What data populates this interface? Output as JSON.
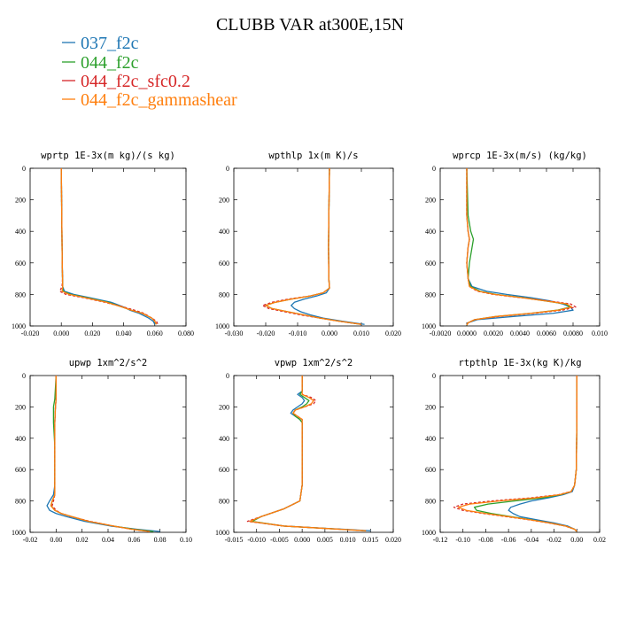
{
  "title": "CLUBB VAR at300E,15N",
  "legend": [
    {
      "label": "037_f2c",
      "color": "#1f77b4"
    },
    {
      "label": "044_f2c",
      "color": "#2ca02c"
    },
    {
      "label": "044_f2c_sfc0.2",
      "color": "#d62728"
    },
    {
      "label": "044_f2c_gammashear",
      "color": "#ff7f0e"
    }
  ],
  "chart_data": [
    {
      "type": "line",
      "title": "wprtp  1E-3x(m kg)/(s kg)",
      "xlim": [
        -0.02,
        0.08
      ],
      "ylim": [
        1000,
        0
      ],
      "xticks": [
        -0.02,
        0.0,
        0.02,
        0.04,
        0.06,
        0.08
      ],
      "xtick_labels": [
        "-0.020",
        "0.000",
        "0.020",
        "0.040",
        "0.060",
        "0.080"
      ],
      "yticks": [
        0,
        200,
        400,
        600,
        800,
        1000
      ],
      "ytick_labels": [
        "0",
        "200",
        "400",
        "600",
        "800",
        "1000"
      ],
      "y": [
        0,
        300,
        600,
        700,
        750,
        780,
        800,
        820,
        850,
        880,
        900,
        920,
        950,
        970,
        990
      ],
      "series": [
        {
          "name": "037_f2c",
          "values": [
            0.0,
            0.0003,
            0.0006,
            0.0008,
            0.0009,
            0.002,
            0.008,
            0.018,
            0.032,
            0.04,
            0.044,
            0.05,
            0.056,
            0.059,
            0.06
          ]
        },
        {
          "name": "044_f2c",
          "values": [
            0.0,
            0.0003,
            0.0006,
            0.0008,
            0.0009,
            0.001,
            0.006,
            0.016,
            0.03,
            0.039,
            0.045,
            0.052,
            0.058,
            0.06,
            0.061
          ]
        },
        {
          "name": "044_f2c_sfc0.2",
          "values": [
            0.0,
            0.0003,
            0.0006,
            0.0008,
            0.0005,
            -0.001,
            0.003,
            0.014,
            0.028,
            0.04,
            0.047,
            0.053,
            0.058,
            0.061,
            0.062
          ]
        },
        {
          "name": "044_f2c_gammashear",
          "values": [
            0.0,
            0.0003,
            0.0006,
            0.0008,
            0.0009,
            0.0005,
            0.005,
            0.015,
            0.029,
            0.039,
            0.045,
            0.052,
            0.058,
            0.06,
            0.061
          ]
        }
      ]
    },
    {
      "type": "line",
      "title": "wpthlp  1x(m K)/s",
      "xlim": [
        -0.03,
        0.02
      ],
      "ylim": [
        1000,
        0
      ],
      "xticks": [
        -0.03,
        -0.02,
        -0.01,
        0.0,
        0.01,
        0.02
      ],
      "xtick_labels": [
        "-0.030",
        "-0.020",
        "-0.010",
        "0.000",
        "0.010",
        "0.020"
      ],
      "yticks": [
        0,
        200,
        400,
        600,
        800,
        1000
      ],
      "ytick_labels": [
        "0",
        "200",
        "400",
        "600",
        "800",
        "1000"
      ],
      "y": [
        0,
        300,
        500,
        700,
        760,
        790,
        810,
        830,
        850,
        870,
        890,
        910,
        930,
        950,
        970,
        990
      ],
      "series": [
        {
          "name": "037_f2c",
          "values": [
            0.0,
            -0.0002,
            -0.0003,
            -0.0002,
            0.0,
            -0.001,
            -0.004,
            -0.008,
            -0.011,
            -0.012,
            -0.011,
            -0.009,
            -0.006,
            -0.002,
            0.004,
            0.011
          ]
        },
        {
          "name": "044_f2c",
          "values": [
            0.0,
            -0.0002,
            -0.0003,
            -0.0002,
            0.0,
            -0.002,
            -0.006,
            -0.012,
            -0.017,
            -0.02,
            -0.018,
            -0.013,
            -0.008,
            -0.003,
            0.003,
            0.01
          ]
        },
        {
          "name": "044_f2c_sfc0.2",
          "values": [
            0.0,
            -0.0002,
            -0.0003,
            -0.0002,
            0.0,
            -0.002,
            -0.006,
            -0.013,
            -0.018,
            -0.021,
            -0.019,
            -0.014,
            -0.009,
            -0.003,
            0.003,
            0.01
          ]
        },
        {
          "name": "044_f2c_gammashear",
          "values": [
            0.0,
            -0.0002,
            -0.0003,
            -0.0002,
            0.0,
            -0.002,
            -0.006,
            -0.012,
            -0.017,
            -0.02,
            -0.018,
            -0.013,
            -0.008,
            -0.003,
            0.003,
            0.01
          ]
        }
      ]
    },
    {
      "type": "line",
      "title": "wprcp  1E-3x(m/s) (kg/kg)",
      "xlim": [
        -0.002,
        0.01
      ],
      "ylim": [
        1000,
        0
      ],
      "xticks": [
        -0.002,
        0.0,
        0.002,
        0.004,
        0.006,
        0.008,
        0.01
      ],
      "xtick_labels": [
        "-0.0020",
        "0.0000",
        "0.0020",
        "0.0040",
        "0.0060",
        "0.0080",
        "0.010"
      ],
      "yticks": [
        0,
        200,
        400,
        600,
        800,
        1000
      ],
      "ytick_labels": [
        "0",
        "200",
        "400",
        "600",
        "800",
        "1000"
      ],
      "y": [
        0,
        300,
        400,
        450,
        500,
        600,
        700,
        750,
        780,
        800,
        820,
        840,
        860,
        880,
        900,
        920,
        940,
        960,
        980,
        995
      ],
      "series": [
        {
          "name": "037_f2c",
          "values": [
            0.0,
            0.0,
            0.0001,
            0.0002,
            0.0001,
            0.0,
            0.0001,
            0.0004,
            0.0015,
            0.003,
            0.0048,
            0.0062,
            0.0072,
            0.0078,
            0.008,
            0.0065,
            0.0035,
            0.0008,
            0.0001,
            0.0
          ]
        },
        {
          "name": "044_f2c",
          "values": [
            0.0,
            0.0001,
            0.0003,
            0.0005,
            0.0004,
            0.0002,
            0.0001,
            0.0003,
            0.001,
            0.0022,
            0.0042,
            0.0058,
            0.0074,
            0.0078,
            0.0068,
            0.0048,
            0.0022,
            0.0006,
            0.0001,
            0.0
          ]
        },
        {
          "name": "044_f2c_sfc0.2",
          "values": [
            0.0,
            0.0,
            0.0001,
            0.0002,
            0.0001,
            0.0,
            0.0001,
            0.0002,
            0.0008,
            0.002,
            0.004,
            0.006,
            0.0078,
            0.0082,
            0.0072,
            0.005,
            0.0024,
            0.0006,
            0.0001,
            0.0
          ]
        },
        {
          "name": "044_f2c_gammashear",
          "values": [
            0.0,
            0.0,
            0.0001,
            0.0002,
            0.0001,
            0.0,
            0.0001,
            0.0002,
            0.0009,
            0.0021,
            0.0041,
            0.0058,
            0.0075,
            0.0079,
            0.0069,
            0.0048,
            0.0022,
            0.0006,
            0.0001,
            0.0
          ]
        }
      ]
    },
    {
      "type": "line",
      "title": "upwp  1xm^2/s^2",
      "xlim": [
        -0.02,
        0.1
      ],
      "ylim": [
        1000,
        0
      ],
      "xticks": [
        -0.02,
        0.0,
        0.02,
        0.04,
        0.06,
        0.08,
        0.1
      ],
      "xtick_labels": [
        "-0.02",
        "0.00",
        "0.02",
        "0.04",
        "0.06",
        "0.08",
        "0.10"
      ],
      "yticks": [
        0,
        200,
        400,
        600,
        800,
        1000
      ],
      "ytick_labels": [
        "0",
        "200",
        "400",
        "600",
        "800",
        "1000"
      ],
      "y": [
        0,
        150,
        200,
        300,
        450,
        600,
        700,
        760,
        800,
        830,
        860,
        880,
        900,
        930,
        960,
        980,
        995
      ],
      "series": [
        {
          "name": "037_f2c",
          "values": [
            0.0,
            0.0,
            -0.0005,
            -0.001,
            -0.001,
            -0.001,
            -0.001,
            -0.002,
            -0.005,
            -0.007,
            -0.005,
            0.0,
            0.008,
            0.022,
            0.042,
            0.062,
            0.08
          ]
        },
        {
          "name": "044_f2c",
          "values": [
            0.0,
            -0.001,
            -0.002,
            -0.002,
            -0.001,
            -0.001,
            -0.001,
            -0.001,
            -0.003,
            -0.004,
            -0.001,
            0.004,
            0.012,
            0.025,
            0.044,
            0.06,
            0.075
          ]
        },
        {
          "name": "044_f2c_sfc0.2",
          "values": [
            0.0,
            0.0,
            -0.0005,
            -0.001,
            -0.001,
            -0.001,
            -0.001,
            -0.001,
            -0.002,
            -0.003,
            0.0,
            0.004,
            0.012,
            0.026,
            0.044,
            0.058,
            0.072
          ]
        },
        {
          "name": "044_f2c_gammashear",
          "values": [
            0.0,
            0.0,
            -0.0005,
            -0.001,
            -0.001,
            -0.001,
            -0.001,
            -0.001,
            -0.003,
            -0.004,
            -0.001,
            0.004,
            0.012,
            0.025,
            0.044,
            0.058,
            0.072
          ]
        }
      ]
    },
    {
      "type": "line",
      "title": "vpwp  1xm^2/s^2",
      "xlim": [
        -0.015,
        0.02
      ],
      "ylim": [
        1000,
        0
      ],
      "xticks": [
        -0.015,
        -0.01,
        -0.005,
        0.0,
        0.005,
        0.01,
        0.015,
        0.02
      ],
      "xtick_labels": [
        "-0.015",
        "-0.010",
        "-0.005",
        "0.000",
        "0.005",
        "0.010",
        "0.015",
        "0.020"
      ],
      "yticks": [
        0,
        200,
        400,
        600,
        800,
        1000
      ],
      "ytick_labels": [
        "0",
        "200",
        "400",
        "600",
        "800",
        "1000"
      ],
      "y": [
        0,
        100,
        120,
        140,
        160,
        180,
        200,
        220,
        240,
        260,
        280,
        300,
        350,
        500,
        700,
        800,
        850,
        900,
        930,
        960,
        990
      ],
      "series": [
        {
          "name": "037_f2c",
          "values": [
            0.0,
            0.0,
            -0.001,
            0.0,
            0.0005,
            0.0,
            -0.001,
            -0.002,
            -0.0025,
            -0.0015,
            -0.0005,
            0.0,
            0.0,
            0.0,
            0.0,
            -0.0005,
            -0.004,
            -0.009,
            -0.0115,
            -0.004,
            0.015
          ]
        },
        {
          "name": "044_f2c",
          "values": [
            0.0,
            0.0,
            -0.0005,
            0.0005,
            0.0015,
            0.001,
            0.0,
            -0.0015,
            -0.002,
            -0.0015,
            -0.0005,
            0.0,
            0.0,
            0.0,
            0.0,
            -0.0005,
            -0.004,
            -0.009,
            -0.011,
            -0.004,
            0.014
          ]
        },
        {
          "name": "044_f2c_sfc0.2",
          "values": [
            0.0,
            0.0,
            0.0,
            0.002,
            0.003,
            0.0025,
            0.0005,
            -0.0015,
            -0.002,
            -0.001,
            0.0,
            0.0,
            0.0,
            0.0,
            0.0,
            -0.0005,
            -0.004,
            -0.009,
            -0.012,
            -0.004,
            0.014
          ]
        },
        {
          "name": "044_f2c_gammashear",
          "values": [
            0.0,
            0.0,
            0.0,
            0.0015,
            0.0025,
            0.002,
            0.0005,
            -0.0015,
            -0.002,
            -0.001,
            0.0,
            0.0,
            0.0,
            0.0,
            0.0,
            -0.0005,
            -0.004,
            -0.009,
            -0.0115,
            -0.004,
            0.014
          ]
        }
      ]
    },
    {
      "type": "line",
      "title": "rtpthlp  1E-3x(kg K)/kg",
      "xlim": [
        -0.12,
        0.02
      ],
      "ylim": [
        1000,
        0
      ],
      "xticks": [
        -0.12,
        -0.1,
        -0.08,
        -0.06,
        -0.04,
        -0.02,
        0.0,
        0.02
      ],
      "xtick_labels": [
        "-0.12",
        "-0.10",
        "-0.08",
        "-0.06",
        "-0.04",
        "-0.02",
        "0.00",
        "0.02"
      ],
      "yticks": [
        0,
        200,
        400,
        600,
        800,
        1000
      ],
      "ytick_labels": [
        "0",
        "200",
        "400",
        "600",
        "800",
        "1000"
      ],
      "y": [
        0,
        300,
        600,
        700,
        740,
        760,
        780,
        800,
        820,
        840,
        860,
        880,
        900,
        920,
        940,
        960,
        980,
        995
      ],
      "series": [
        {
          "name": "037_f2c",
          "values": [
            0.0,
            0.0,
            -0.0005,
            -0.002,
            -0.004,
            -0.012,
            -0.025,
            -0.04,
            -0.05,
            -0.058,
            -0.06,
            -0.056,
            -0.05,
            -0.035,
            -0.02,
            -0.008,
            -0.002,
            0.0
          ]
        },
        {
          "name": "044_f2c",
          "values": [
            0.0,
            0.0,
            -0.0005,
            -0.002,
            -0.005,
            -0.014,
            -0.03,
            -0.055,
            -0.078,
            -0.09,
            -0.088,
            -0.075,
            -0.058,
            -0.04,
            -0.024,
            -0.01,
            -0.002,
            0.0
          ]
        },
        {
          "name": "044_f2c_sfc0.2",
          "values": [
            0.0,
            0.0,
            -0.0005,
            -0.002,
            -0.005,
            -0.016,
            -0.04,
            -0.075,
            -0.1,
            -0.108,
            -0.1,
            -0.082,
            -0.062,
            -0.042,
            -0.025,
            -0.01,
            -0.002,
            0.0
          ]
        },
        {
          "name": "044_f2c_gammashear",
          "values": [
            0.0,
            0.0,
            -0.0005,
            -0.002,
            -0.005,
            -0.015,
            -0.036,
            -0.068,
            -0.094,
            -0.104,
            -0.097,
            -0.08,
            -0.06,
            -0.041,
            -0.024,
            -0.01,
            -0.002,
            0.0
          ]
        }
      ]
    }
  ]
}
